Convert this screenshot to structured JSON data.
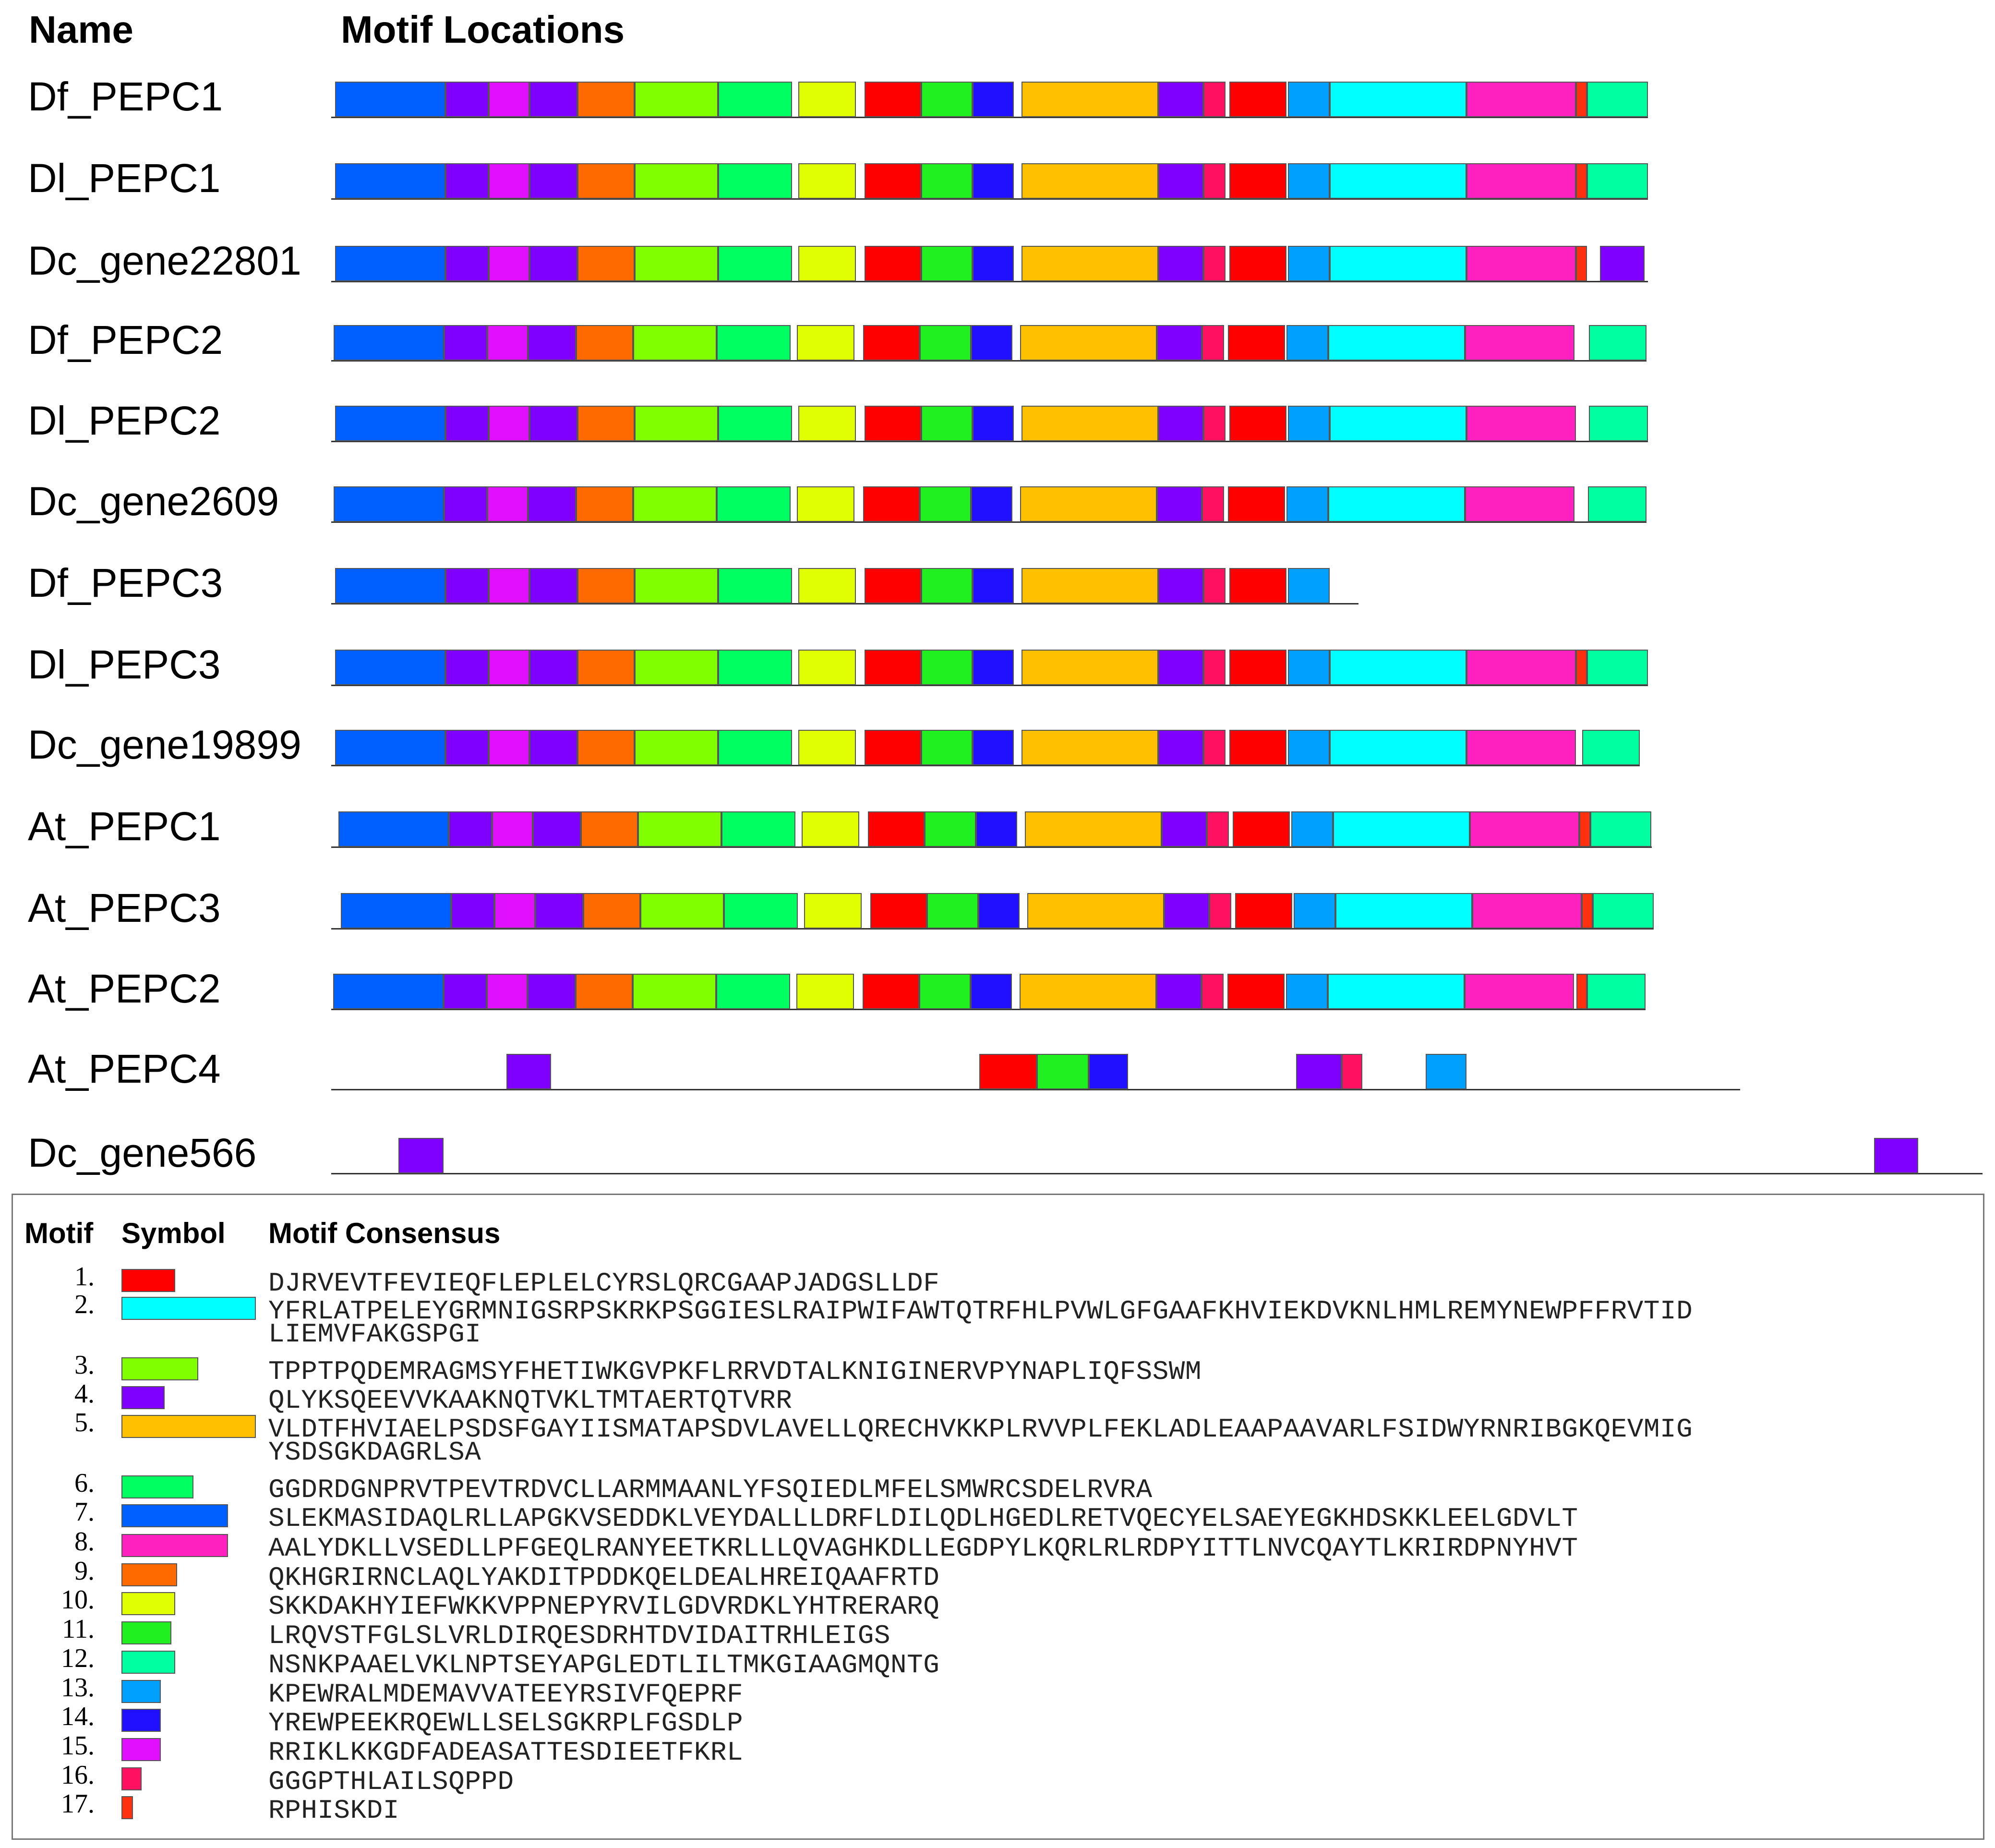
{
  "headers": {
    "name": "Name",
    "motif_locations": "Motif Locations"
  },
  "colors": {
    "m1": "#ff0000",
    "m2": "#00ffff",
    "m3": "#80ff00",
    "m4": "#8000ff",
    "m5": "#ffc000",
    "m6": "#00ff60",
    "m7": "#0060ff",
    "m8": "#ff20c0",
    "m9": "#ff6a00",
    "m10": "#e0ff00",
    "m11": "#20f020",
    "m12": "#00ffa0",
    "m13": "#00a0ff",
    "m14": "#2010ff",
    "m15": "#e010ff",
    "m16": "#ff1060",
    "m17": "#ff3010"
  },
  "sequences": [
    {
      "name": "Df_PEPC1"
    },
    {
      "name": "Dl_PEPC1"
    },
    {
      "name": "Dc_gene22801"
    },
    {
      "name": "Df_PEPC2"
    },
    {
      "name": "Dl_PEPC2"
    },
    {
      "name": "Dc_gene2609"
    },
    {
      "name": "Df_PEPC3"
    },
    {
      "name": "Dl_PEPC3"
    },
    {
      "name": "Dc_gene19899"
    },
    {
      "name": "At_PEPC1"
    },
    {
      "name": "At_PEPC3"
    },
    {
      "name": "At_PEPC2"
    },
    {
      "name": "At_PEPC4"
    },
    {
      "name": "Dc_gene566"
    }
  ],
  "legend": {
    "headers": {
      "motif": "Motif",
      "symbol": "Symbol",
      "consensus": "Motif Consensus"
    },
    "motifs": [
      {
        "num": "1.",
        "motif": 1,
        "lines": [
          "DJRVEVTFEVIEQFLEPLELCYRSLQRCGAAPJADGSLLDF"
        ]
      },
      {
        "num": "2.",
        "motif": 2,
        "lines": [
          "YFRLATPELEYGRMNIGSRPSKRKPSGGIESLRAIPWIFAWTQTRFHLPVWLGFGAAFKHVIEKDVKNLHMLREMYNEWPFFRVTID",
          "LIEMVFAKGSPGI"
        ]
      },
      {
        "num": "3.",
        "motif": 3,
        "lines": [
          "TPPTPQDEMRAGMSYFHETIWKGVPKFLRRVDTALKNIGINERVPYNAPLIQFSSWM"
        ]
      },
      {
        "num": "4.",
        "motif": 4,
        "lines": [
          "QLYKSQEEVVKAAKNQTVKLTMTAERTQTVRR"
        ]
      },
      {
        "num": "5.",
        "motif": 5,
        "lines": [
          "VLDTFHVIAELPSDSFGAYIISMATAPSDVLAVELLQRECHVKKPLRVVPLFEKLADLEAAPAAVARLFSIDWYRNRIBGKQEVMIG",
          "YSDSGKDAGRLSA"
        ]
      },
      {
        "num": "6.",
        "motif": 6,
        "lines": [
          "GGDRDGNPRVTPEVTRDVCLLARMMAANLYFSQIEDLMFELSMWRCSDELRVRA"
        ]
      },
      {
        "num": "7.",
        "motif": 7,
        "lines": [
          "SLEKMASIDAQLRLLAPGKVSEDDKLVEYDALLLDRFLDILQDLHGEDLRETVQECYELSAEYEGKHDSKKLEELGDVLT"
        ]
      },
      {
        "num": "8.",
        "motif": 8,
        "lines": [
          "AALYDKLLVSEDLLPFGEQLRANYEETKRLLLQVAGHKDLLEGDPYLKQRLRLRDPYITTLNVCQAYTLKRIRDPNYHVT"
        ]
      },
      {
        "num": "9.",
        "motif": 9,
        "lines": [
          "QKHGRIRNCLAQLYAKDITPDDKQELDEALHREIQAAFRTD"
        ]
      },
      {
        "num": "10.",
        "motif": 10,
        "lines": [
          "SKKDAKHYIEFWKKVPPNEPYRVILGDVRDKLYHTRERARQ"
        ]
      },
      {
        "num": "11.",
        "motif": 11,
        "lines": [
          "LRQVSTFGLSLVRLDIRQESDRHTDVIDAITRHLEIGS"
        ]
      },
      {
        "num": "12.",
        "motif": 12,
        "lines": [
          "NSNKPAAELVKLNPTSEYAPGLEDTLILTMKGIAAGMQNTG"
        ]
      },
      {
        "num": "13.",
        "motif": 13,
        "lines": [
          "KPEWRALMDEMAVVATEEYRSIVFQEPRF"
        ]
      },
      {
        "num": "14.",
        "motif": 14,
        "lines": [
          "YREWPEEKRQEWLLSELSGKRPLFGSDLP"
        ]
      },
      {
        "num": "15.",
        "motif": 15,
        "lines": [
          "RRIKLKKGDFADEASATTESDIEETFKRL"
        ]
      },
      {
        "num": "16.",
        "motif": 16,
        "lines": [
          "GGGPTHLAILSQPPD"
        ]
      },
      {
        "num": "17.",
        "motif": 17,
        "lines": [
          "RPHISKDI"
        ]
      }
    ]
  }
}
